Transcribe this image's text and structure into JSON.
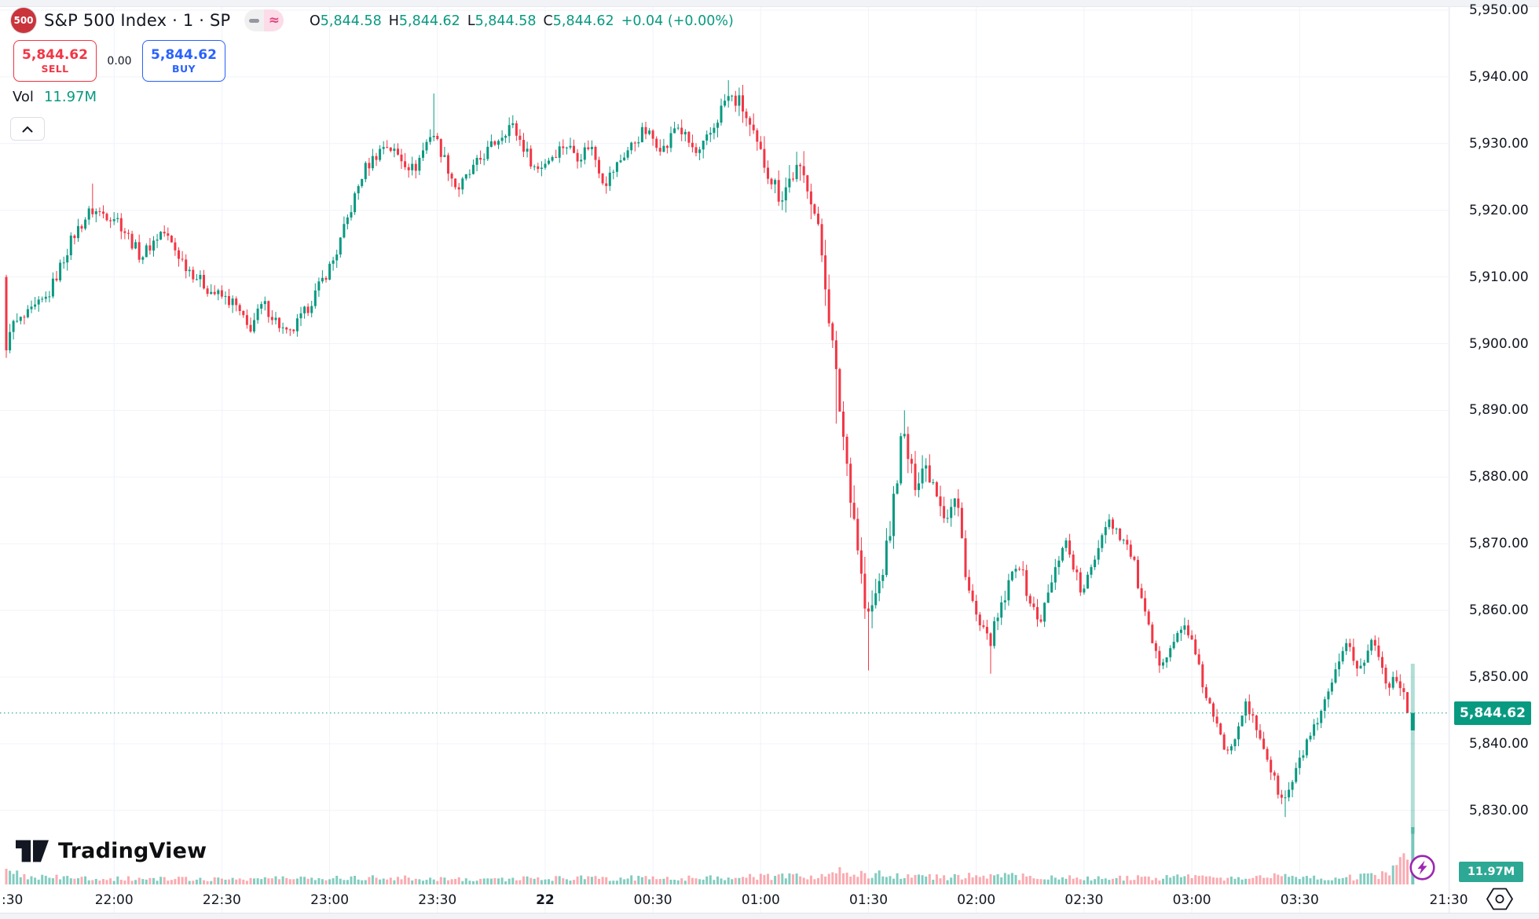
{
  "app": {
    "up_color": "#089981",
    "down_color": "#f23645",
    "grid_color": "#f0f3fa",
    "text_color": "#131722"
  },
  "header": {
    "symbol_badge": {
      "text": "500",
      "bg": "#cb333b"
    },
    "title": "S&P 500 Index · 1 · SP",
    "toggle": {
      "dash_bg": "#f0f0f0",
      "dash_color": "#9598a1",
      "approx_symbol": "≈",
      "approx_bg": "#fbdce8",
      "approx_color": "#e0457b"
    },
    "ohlc": {
      "items": [
        {
          "label": "O",
          "value": "5,844.58"
        },
        {
          "label": "H",
          "value": "5,844.62"
        },
        {
          "label": "L",
          "value": "5,844.58"
        },
        {
          "label": "C",
          "value": "5,844.62"
        }
      ],
      "change": "+0.04 (+0.00%)",
      "value_color": "#089981"
    },
    "trade": {
      "sell": {
        "price": "5,844.62",
        "label": "SELL",
        "color": "#f23645"
      },
      "spread": "0.00",
      "buy": {
        "price": "5,844.62",
        "label": "BUY",
        "color": "#2962ff"
      }
    },
    "volume_row": {
      "label": "Vol",
      "value": "11.97M",
      "value_color": "#089981"
    }
  },
  "price_axis": {
    "labels": [
      {
        "v": 5950,
        "t": "5,950.00"
      },
      {
        "v": 5940,
        "t": "5,940.00"
      },
      {
        "v": 5930,
        "t": "5,930.00"
      },
      {
        "v": 5920,
        "t": "5,920.00"
      },
      {
        "v": 5910,
        "t": "5,910.00"
      },
      {
        "v": 5900,
        "t": "5,900.00"
      },
      {
        "v": 5890,
        "t": "5,890.00"
      },
      {
        "v": 5880,
        "t": "5,880.00"
      },
      {
        "v": 5870,
        "t": "5,870.00"
      },
      {
        "v": 5860,
        "t": "5,860.00"
      },
      {
        "v": 5850,
        "t": "5,850.00"
      },
      {
        "v": 5840,
        "t": "5,840.00"
      },
      {
        "v": 5830,
        "t": "5,830.00"
      }
    ],
    "last_price_tag": {
      "v": 5844.62,
      "t": "5,844.62",
      "bg": "#089981"
    }
  },
  "time_axis": {
    "ticks": [
      {
        "t": ":30",
        "m": 0,
        "bold": false,
        "grid": false
      },
      {
        "t": "22:00",
        "m": 30,
        "bold": false,
        "grid": true
      },
      {
        "t": "22:30",
        "m": 60,
        "bold": false,
        "grid": true
      },
      {
        "t": "23:00",
        "m": 90,
        "bold": false,
        "grid": true
      },
      {
        "t": "23:30",
        "m": 120,
        "bold": false,
        "grid": true
      },
      {
        "t": "22",
        "m": 150,
        "bold": true,
        "grid": true
      },
      {
        "t": "00:30",
        "m": 180,
        "bold": false,
        "grid": true
      },
      {
        "t": "01:00",
        "m": 210,
        "bold": false,
        "grid": true
      },
      {
        "t": "01:30",
        "m": 240,
        "bold": false,
        "grid": true
      },
      {
        "t": "02:00",
        "m": 270,
        "bold": false,
        "grid": true
      },
      {
        "t": "02:30",
        "m": 300,
        "bold": false,
        "grid": true
      },
      {
        "t": "03:00",
        "m": 330,
        "bold": false,
        "grid": true
      },
      {
        "t": "03:30",
        "m": 360,
        "bold": false,
        "grid": true
      },
      {
        "t": "21:30",
        "m": 401.5,
        "bold": false,
        "grid": true
      }
    ]
  },
  "volume_tag": {
    "t": "11.97M",
    "bg": "rgba(8,153,129,0.85)"
  },
  "footer": {
    "logo_text": "TradingView"
  },
  "chart_data": {
    "type": "candlestick",
    "symbol": "S&P 500 Index",
    "interval": "1 minute",
    "exchange": "SP",
    "session_start_label": "21:30",
    "open": 5844.58,
    "high": 5844.62,
    "low": 5844.58,
    "close": 5844.62,
    "change": 0.04,
    "change_pct": 0.0,
    "last_price": 5844.62,
    "volume": "11.97M",
    "y_range_labels": [
      5830,
      5950
    ],
    "bars": 391,
    "price_path": [
      [
        0,
        5902
      ],
      [
        6,
        5904
      ],
      [
        12,
        5907
      ],
      [
        19,
        5916
      ],
      [
        24,
        5920
      ],
      [
        31,
        5919
      ],
      [
        38,
        5913
      ],
      [
        44,
        5917
      ],
      [
        50,
        5912
      ],
      [
        57,
        5908
      ],
      [
        64,
        5906
      ],
      [
        68,
        5902
      ],
      [
        72,
        5906
      ],
      [
        79,
        5901
      ],
      [
        84,
        5905
      ],
      [
        92,
        5913
      ],
      [
        100,
        5926
      ],
      [
        106,
        5930
      ],
      [
        110,
        5928
      ],
      [
        114,
        5926
      ],
      [
        119,
        5932
      ],
      [
        123,
        5927
      ],
      [
        126,
        5923
      ],
      [
        133,
        5928
      ],
      [
        141,
        5933
      ],
      [
        148,
        5926
      ],
      [
        156,
        5930
      ],
      [
        160,
        5928
      ],
      [
        163,
        5930
      ],
      [
        167,
        5924
      ],
      [
        172,
        5928
      ],
      [
        178,
        5932
      ],
      [
        184,
        5929
      ],
      [
        187,
        5933
      ],
      [
        193,
        5928
      ],
      [
        197,
        5932
      ],
      [
        201,
        5937
      ],
      [
        205,
        5936
      ],
      [
        209,
        5930
      ],
      [
        216,
        5922
      ],
      [
        220,
        5926
      ],
      [
        224,
        5924
      ],
      [
        228,
        5912
      ],
      [
        231,
        5897
      ],
      [
        234,
        5884
      ],
      [
        237,
        5872
      ],
      [
        240,
        5858
      ],
      [
        243,
        5863
      ],
      [
        246,
        5870
      ],
      [
        250,
        5887
      ],
      [
        253,
        5879
      ],
      [
        256,
        5882
      ],
      [
        259,
        5879
      ],
      [
        262,
        5874
      ],
      [
        265,
        5877
      ],
      [
        268,
        5864
      ],
      [
        271,
        5858
      ],
      [
        274,
        5855
      ],
      [
        278,
        5861
      ],
      [
        282,
        5868
      ],
      [
        285,
        5862
      ],
      [
        288,
        5858
      ],
      [
        292,
        5865
      ],
      [
        295,
        5871
      ],
      [
        298,
        5866
      ],
      [
        300,
        5862
      ],
      [
        304,
        5869
      ],
      [
        307,
        5874
      ],
      [
        311,
        5871
      ],
      [
        314,
        5868
      ],
      [
        317,
        5860
      ],
      [
        319,
        5856
      ],
      [
        321,
        5852
      ],
      [
        325,
        5855
      ],
      [
        329,
        5858
      ],
      [
        332,
        5852
      ],
      [
        334,
        5848
      ],
      [
        337,
        5843
      ],
      [
        340,
        5839
      ],
      [
        343,
        5842
      ],
      [
        345,
        5846
      ],
      [
        348,
        5843
      ],
      [
        351,
        5839
      ],
      [
        353,
        5835
      ],
      [
        356,
        5831
      ],
      [
        359,
        5835
      ],
      [
        363,
        5841
      ],
      [
        366,
        5843
      ],
      [
        368,
        5847
      ],
      [
        371,
        5851
      ],
      [
        374,
        5855
      ],
      [
        377,
        5851
      ],
      [
        379,
        5853
      ],
      [
        381,
        5856
      ],
      [
        383,
        5852
      ],
      [
        385,
        5849
      ],
      [
        387,
        5850
      ],
      [
        389,
        5849
      ],
      [
        390,
        5844.62
      ]
    ],
    "bar_overrides": [
      {
        "m": 0,
        "open": 5910,
        "close": 5899
      },
      {
        "m": 390,
        "close": 5844.62
      }
    ],
    "wick_events": [
      {
        "m": 24,
        "high": 5924
      },
      {
        "m": 119,
        "high": 5937.5
      },
      {
        "m": 201,
        "high": 5939.5
      },
      {
        "m": 231,
        "low": 5888
      },
      {
        "m": 240,
        "low": 5851
      },
      {
        "m": 274,
        "low": 5850.5
      },
      {
        "m": 250,
        "high": 5890
      },
      {
        "m": 356,
        "low": 5829
      }
    ],
    "volume_path": [
      [
        0,
        14
      ],
      [
        10,
        9
      ],
      [
        20,
        8
      ],
      [
        40,
        7
      ],
      [
        60,
        7
      ],
      [
        80,
        8
      ],
      [
        100,
        9
      ],
      [
        120,
        7
      ],
      [
        140,
        7
      ],
      [
        160,
        8
      ],
      [
        180,
        8
      ],
      [
        200,
        9
      ],
      [
        226,
        10
      ],
      [
        232,
        16
      ],
      [
        238,
        14
      ],
      [
        244,
        12
      ],
      [
        252,
        11
      ],
      [
        262,
        9
      ],
      [
        274,
        12
      ],
      [
        290,
        8
      ],
      [
        310,
        8
      ],
      [
        330,
        9
      ],
      [
        345,
        8
      ],
      [
        356,
        11
      ],
      [
        365,
        8
      ],
      [
        375,
        9
      ],
      [
        382,
        12
      ],
      [
        385,
        16
      ],
      [
        387,
        22
      ],
      [
        388,
        30
      ],
      [
        389,
        45
      ],
      [
        390,
        26
      ]
    ],
    "current_bar": {
      "minute": 391.5,
      "high": 5852,
      "low": 5826.5,
      "body_open": 5842,
      "body_close": 5844.62,
      "volume_height": 73
    }
  }
}
